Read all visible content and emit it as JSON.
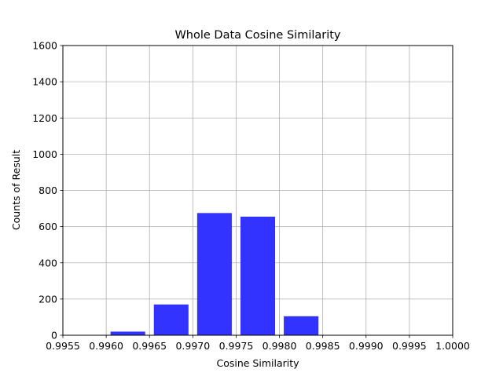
{
  "chart_data": {
    "type": "bar",
    "title": "Whole Data Cosine Similarity",
    "xlabel": "Cosine Similarity",
    "ylabel": "Counts of Result",
    "xlim": [
      0.9955,
      1.0
    ],
    "ylim": [
      0,
      1600
    ],
    "grid": true,
    "bar_color": "#3333ff",
    "bar_width": 0.0004,
    "x_ticks": [
      "0.9955",
      "0.9960",
      "0.9965",
      "0.9970",
      "0.9975",
      "0.9980",
      "0.9985",
      "0.9990",
      "0.9995",
      "1.0000"
    ],
    "y_ticks": [
      "0",
      "200",
      "400",
      "600",
      "800",
      "1000",
      "1200",
      "1400",
      "1600"
    ],
    "bins": [
      {
        "x": 0.99625,
        "value": 20
      },
      {
        "x": 0.99675,
        "value": 170
      },
      {
        "x": 0.99725,
        "value": 675
      },
      {
        "x": 0.99775,
        "value": 655
      },
      {
        "x": 0.99825,
        "value": 105
      },
      {
        "x": 0.99875,
        "value": 0
      }
    ]
  }
}
